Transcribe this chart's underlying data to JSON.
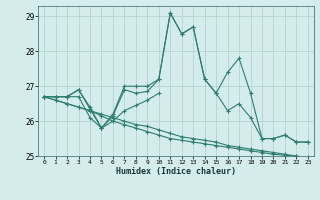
{
  "xlabel": "Humidex (Indice chaleur)",
  "x_values": [
    0,
    1,
    2,
    3,
    4,
    5,
    6,
    7,
    8,
    9,
    10,
    11,
    12,
    13,
    14,
    15,
    16,
    17,
    18,
    19,
    20,
    21,
    22,
    23
  ],
  "line1": [
    26.7,
    26.7,
    26.7,
    26.9,
    26.4,
    25.8,
    26.2,
    27.0,
    27.0,
    27.0,
    27.2,
    29.1,
    28.5,
    28.7,
    27.2,
    26.8,
    27.4,
    27.8,
    26.8,
    25.5,
    25.5,
    25.6,
    25.4,
    25.4
  ],
  "line2": [
    26.7,
    26.7,
    26.7,
    26.9,
    26.35,
    25.8,
    26.15,
    26.9,
    26.8,
    26.85,
    27.2,
    29.1,
    28.5,
    28.7,
    27.2,
    26.8,
    26.3,
    26.5,
    26.1,
    25.5,
    25.5,
    25.6,
    25.4,
    25.4
  ],
  "line3": [
    26.7,
    26.7,
    26.7,
    26.7,
    26.1,
    25.8,
    26.0,
    26.3,
    26.45,
    26.6,
    26.8,
    null,
    null,
    null,
    null,
    null,
    null,
    null,
    null,
    null,
    null,
    null,
    null,
    null
  ],
  "line4": [
    26.7,
    26.6,
    26.5,
    26.4,
    26.3,
    26.2,
    26.1,
    26.0,
    25.9,
    25.85,
    25.75,
    25.65,
    25.55,
    25.5,
    25.45,
    25.4,
    25.3,
    25.25,
    25.2,
    25.15,
    25.1,
    25.05,
    25.0,
    24.95
  ],
  "line5": [
    26.7,
    26.6,
    26.5,
    26.4,
    26.3,
    26.15,
    26.0,
    25.9,
    25.8,
    25.7,
    25.6,
    25.5,
    25.45,
    25.4,
    25.35,
    25.3,
    25.25,
    25.2,
    25.15,
    25.1,
    25.05,
    25.02,
    24.99,
    24.96
  ],
  "line_color": "#2d7d70",
  "bg_color": "#d5ecec",
  "grid_color": "#aed0cc",
  "ylim": [
    25.0,
    29.3
  ],
  "yticks": [
    25,
    26,
    27,
    28,
    29
  ],
  "marker": "+",
  "markersize": 3.5,
  "linewidth": 0.8
}
